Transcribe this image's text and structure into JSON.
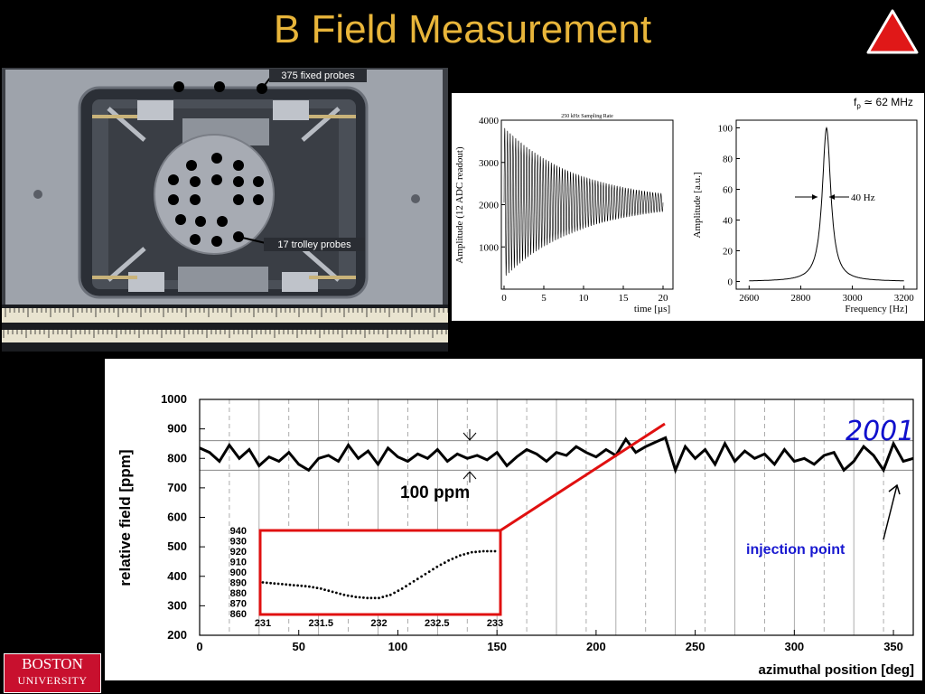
{
  "slide": {
    "title": "B Field Measurement",
    "logo_line1": "BOSTON",
    "logo_line2": "UNIVERSITY"
  },
  "photo": {
    "fixed_probes_label": "375 fixed probes",
    "trolley_probes_label": "17 trolley probes"
  },
  "chart_data": [
    {
      "type": "line",
      "title": "250 kHz Sampling Rate",
      "xlabel": "time [µs]",
      "ylabel": "Amplitude (12 ADC readout)",
      "xlim": [
        0,
        20
      ],
      "ylim": [
        0,
        4000
      ],
      "x_ticks": [
        "0",
        "5",
        "10",
        "15",
        "20"
      ],
      "y_ticks": [
        "1000",
        "2000",
        "3000",
        "4000"
      ],
      "signal": {
        "center": 2050,
        "initial_half_amplitude": 1780,
        "final_half_amplitude": 210,
        "cycles_shown": 58
      }
    },
    {
      "type": "line",
      "xlabel": "Frequency [Hz]",
      "ylabel": "Amplitude [a.u.]",
      "xlim": [
        2550,
        3250
      ],
      "ylim": [
        -5,
        105
      ],
      "x_ticks": [
        "2600",
        "2800",
        "3000",
        "3200"
      ],
      "y_ticks": [
        "0",
        "20",
        "40",
        "60",
        "80",
        "100"
      ],
      "annotation_width": "40 Hz",
      "annotation_fp": "f",
      "annotation_fp_sub": "p",
      "annotation_fp_value": " ≃ 62 MHz",
      "peak": {
        "x": 2900,
        "y": 100,
        "width_hz": 40
      }
    },
    {
      "type": "line",
      "xlabel": "azimuthal position [deg]",
      "ylabel": "relative field [ppm]",
      "xlim": [
        0,
        360
      ],
      "ylim": [
        200,
        1000
      ],
      "x_ticks": [
        "0",
        "50",
        "100",
        "150",
        "200",
        "250",
        "300",
        "350"
      ],
      "y_ticks": [
        "200",
        "300",
        "400",
        "500",
        "600",
        "700",
        "800",
        "900",
        "1000"
      ],
      "annotation_scale": "100 ppm",
      "annotation_year": "2001",
      "annotation_injection": "injection point",
      "series": [
        {
          "x": [
            0,
            5,
            10,
            15,
            20,
            25,
            30,
            35,
            40,
            45,
            50,
            55,
            60,
            65,
            70,
            75,
            80,
            85,
            90,
            95,
            100,
            105,
            110,
            115,
            120,
            125,
            130,
            135,
            140,
            145,
            150,
            155,
            160,
            165,
            170,
            175,
            180,
            185,
            190,
            195,
            200,
            205,
            210,
            215,
            220,
            225,
            230,
            235,
            240,
            245,
            250,
            255,
            260,
            265,
            270,
            275,
            280,
            285,
            290,
            295,
            300,
            305,
            310,
            315,
            320,
            325,
            330,
            335,
            340,
            345,
            350,
            355,
            360
          ],
          "values": [
            835,
            820,
            790,
            845,
            800,
            830,
            775,
            805,
            790,
            820,
            780,
            760,
            800,
            810,
            790,
            845,
            800,
            825,
            780,
            835,
            805,
            790,
            815,
            800,
            830,
            790,
            815,
            800,
            810,
            795,
            820,
            775,
            805,
            830,
            815,
            790,
            820,
            810,
            840,
            820,
            805,
            830,
            810,
            865,
            820,
            840,
            855,
            870,
            760,
            840,
            800,
            830,
            780,
            850,
            790,
            825,
            800,
            815,
            780,
            830,
            790,
            800,
            780,
            810,
            820,
            760,
            790,
            840,
            810,
            760,
            850,
            790,
            800
          ]
        }
      ]
    },
    {
      "type": "line",
      "xlim": [
        231,
        233
      ],
      "ylim": [
        860,
        940
      ],
      "x_ticks": [
        "231",
        "231.5",
        "232",
        "232.5",
        "233"
      ],
      "y_ticks": [
        "860",
        "870",
        "880",
        "890",
        "900",
        "910",
        "920",
        "930",
        "940"
      ],
      "series": [
        {
          "x": [
            231.0,
            231.1,
            231.2,
            231.3,
            231.4,
            231.5,
            231.6,
            231.7,
            231.8,
            231.9,
            232.0,
            232.1,
            232.2,
            232.3,
            232.4,
            232.5,
            232.6,
            232.7,
            232.8,
            232.9,
            233.0
          ],
          "values": [
            890,
            889,
            888,
            887,
            886,
            884,
            881,
            878,
            876,
            875,
            875,
            878,
            884,
            891,
            898,
            905,
            911,
            916,
            919,
            920,
            920
          ]
        }
      ]
    }
  ]
}
